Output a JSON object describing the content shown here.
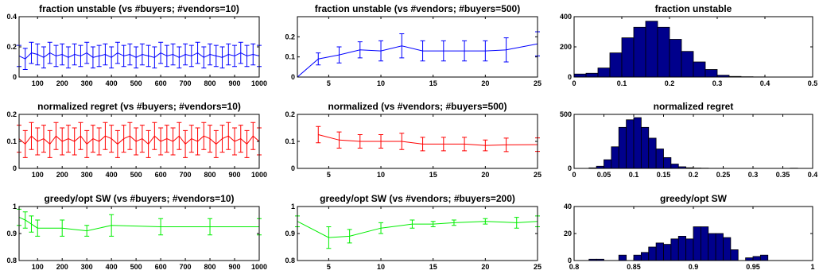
{
  "chart_data": [
    {
      "type": "line",
      "title": "fraction unstable (vs #buyers; #vendors=10)",
      "color": "#0000ff",
      "xlim": [
        25,
        1000
      ],
      "ylim": [
        0,
        0.4
      ],
      "xticks": [
        100,
        200,
        300,
        400,
        500,
        600,
        700,
        800,
        900,
        1000
      ],
      "yticks": [
        0,
        0.2,
        0.4
      ],
      "x": [
        25,
        50,
        75,
        100,
        125,
        150,
        175,
        200,
        225,
        250,
        275,
        300,
        325,
        350,
        375,
        400,
        425,
        450,
        475,
        500,
        525,
        550,
        575,
        600,
        625,
        650,
        675,
        700,
        725,
        750,
        775,
        800,
        825,
        850,
        875,
        900,
        925,
        950,
        975,
        1000
      ],
      "y": [
        0.14,
        0.12,
        0.16,
        0.15,
        0.13,
        0.16,
        0.14,
        0.15,
        0.13,
        0.15,
        0.14,
        0.16,
        0.13,
        0.14,
        0.15,
        0.13,
        0.16,
        0.14,
        0.15,
        0.13,
        0.15,
        0.14,
        0.13,
        0.16,
        0.14,
        0.15,
        0.13,
        0.15,
        0.14,
        0.16,
        0.13,
        0.15,
        0.14,
        0.13,
        0.15,
        0.14,
        0.16,
        0.14,
        0.15,
        0.14
      ],
      "err": 0.07
    },
    {
      "type": "line",
      "title": "fraction unstable (vs #vendors; #buyers=500)",
      "color": "#0000ff",
      "xlim": [
        2,
        25
      ],
      "ylim": [
        0,
        0.3
      ],
      "xticks": [
        5,
        10,
        15,
        20,
        25
      ],
      "yticks": [
        0,
        0.1,
        0.2
      ],
      "x": [
        2,
        4,
        6,
        8,
        10,
        12,
        14,
        16,
        18,
        20,
        22,
        25
      ],
      "y": [
        0,
        0.09,
        0.11,
        0.135,
        0.13,
        0.155,
        0.13,
        0.13,
        0.13,
        0.13,
        0.135,
        0.165
      ],
      "err": [
        0,
        0.03,
        0.04,
        0.04,
        0.05,
        0.06,
        0.05,
        0.05,
        0.05,
        0.05,
        0.06,
        0.06
      ]
    },
    {
      "type": "bar",
      "title": "fraction unstable",
      "color": "#00008c",
      "xlim": [
        0,
        0.5
      ],
      "ylim": [
        0,
        400
      ],
      "xticks": [
        0,
        0.1,
        0.2,
        0.3,
        0.4,
        0.5
      ],
      "yticks": [
        0,
        200,
        400
      ],
      "bin_start": 0,
      "bin_width": 0.025,
      "values": [
        20,
        25,
        60,
        160,
        260,
        330,
        370,
        330,
        250,
        170,
        100,
        50,
        12,
        4,
        2,
        1,
        0,
        0,
        0,
        0
      ]
    },
    {
      "type": "line",
      "title": "normalized regret (vs #buyers; #vendors=10)",
      "color": "#ff0000",
      "xlim": [
        25,
        1000
      ],
      "ylim": [
        0,
        0.2
      ],
      "xticks": [
        100,
        200,
        300,
        400,
        500,
        600,
        700,
        800,
        900,
        1000
      ],
      "yticks": [
        0,
        0.1,
        0.2
      ],
      "x": [
        25,
        50,
        75,
        100,
        125,
        150,
        175,
        200,
        225,
        250,
        275,
        300,
        325,
        350,
        375,
        400,
        425,
        450,
        475,
        500,
        525,
        550,
        575,
        600,
        625,
        650,
        675,
        700,
        725,
        750,
        775,
        800,
        825,
        850,
        875,
        900,
        925,
        950,
        975,
        1000
      ],
      "y": [
        0.11,
        0.09,
        0.12,
        0.1,
        0.11,
        0.09,
        0.12,
        0.1,
        0.11,
        0.1,
        0.12,
        0.09,
        0.11,
        0.1,
        0.12,
        0.11,
        0.09,
        0.11,
        0.12,
        0.1,
        0.11,
        0.09,
        0.12,
        0.1,
        0.11,
        0.1,
        0.12,
        0.09,
        0.11,
        0.1,
        0.12,
        0.11,
        0.09,
        0.11,
        0.12,
        0.1,
        0.11,
        0.09,
        0.12,
        0.1
      ],
      "err": 0.05
    },
    {
      "type": "line",
      "title": "normalized (vs #vendors; #buyers=500)",
      "color": "#ff0000",
      "xlim": [
        2,
        25
      ],
      "ylim": [
        0,
        0.2
      ],
      "xticks": [
        5,
        10,
        15,
        20,
        25
      ],
      "yticks": [
        0,
        0.1,
        0.2
      ],
      "x": [
        4,
        6,
        8,
        10,
        12,
        14,
        16,
        18,
        20,
        22,
        25
      ],
      "y": [
        0.125,
        0.105,
        0.1,
        0.1,
        0.1,
        0.09,
        0.09,
        0.09,
        0.085,
        0.087,
        0.088
      ],
      "err": [
        0.03,
        0.03,
        0.025,
        0.025,
        0.03,
        0.025,
        0.025,
        0.025,
        0.02,
        0.025,
        0.025
      ]
    },
    {
      "type": "bar",
      "title": "normalized regret",
      "color": "#00008c",
      "xlim": [
        0,
        0.4
      ],
      "ylim": [
        0,
        500
      ],
      "xticks": [
        0,
        0.05,
        0.1,
        0.15,
        0.2,
        0.25,
        0.3,
        0.35,
        0.4
      ],
      "yticks": [
        0,
        500
      ],
      "bin_start": 0,
      "bin_width": 0.0125,
      "values": [
        0,
        0,
        5,
        20,
        80,
        200,
        380,
        450,
        470,
        380,
        280,
        180,
        100,
        40,
        15,
        6,
        3,
        2,
        1,
        1,
        0,
        0,
        0,
        0,
        0,
        0,
        0,
        0,
        0,
        2,
        0,
        0
      ]
    },
    {
      "type": "line",
      "title": "greedy/opt SW (vs #buyers; #vendors=10)",
      "color": "#00ee00",
      "xlim": [
        25,
        1000
      ],
      "ylim": [
        0.8,
        1
      ],
      "xticks": [
        100,
        200,
        300,
        400,
        500,
        600,
        700,
        800,
        900,
        1000
      ],
      "yticks": [
        0.8,
        0.9,
        1
      ],
      "x": [
        25,
        50,
        75,
        100,
        200,
        300,
        400,
        600,
        800,
        1000
      ],
      "y": [
        0.96,
        0.95,
        0.935,
        0.92,
        0.92,
        0.91,
        0.93,
        0.925,
        0.925,
        0.925
      ],
      "err": [
        0.03,
        0.03,
        0.03,
        0.03,
        0.03,
        0.02,
        0.04,
        0.03,
        0.03,
        0.03
      ]
    },
    {
      "type": "line",
      "title": "greedy/opt SW (vs #vendors; #buyers=200)",
      "color": "#00ee00",
      "xlim": [
        2,
        25
      ],
      "ylim": [
        0.8,
        1
      ],
      "xticks": [
        5,
        10,
        15,
        20,
        25
      ],
      "yticks": [
        0.8,
        0.9,
        1
      ],
      "x": [
        2,
        5,
        7,
        10,
        13,
        15,
        17,
        20,
        23,
        25
      ],
      "y": [
        0.945,
        0.885,
        0.89,
        0.92,
        0.935,
        0.935,
        0.94,
        0.945,
        0.94,
        0.945
      ],
      "err": [
        0.02,
        0.04,
        0.025,
        0.02,
        0.015,
        0.01,
        0.01,
        0.01,
        0.02,
        0.02
      ]
    },
    {
      "type": "bar",
      "title": "greedy/opt SW",
      "color": "#00008c",
      "xlim": [
        0.8,
        1
      ],
      "ylim": [
        0,
        40
      ],
      "xticks": [
        0.8,
        0.85,
        0.9,
        0.95,
        1
      ],
      "yticks": [
        0,
        20,
        40
      ],
      "bin_start": 0.8,
      "bin_width": 0.00625,
      "values": [
        0,
        0,
        1,
        1,
        0,
        0,
        4,
        0,
        4,
        6,
        10,
        13,
        12,
        16,
        18,
        16,
        25,
        25,
        20,
        20,
        17,
        8,
        0,
        2,
        3,
        4,
        0,
        0,
        0,
        0,
        0,
        0
      ]
    }
  ]
}
